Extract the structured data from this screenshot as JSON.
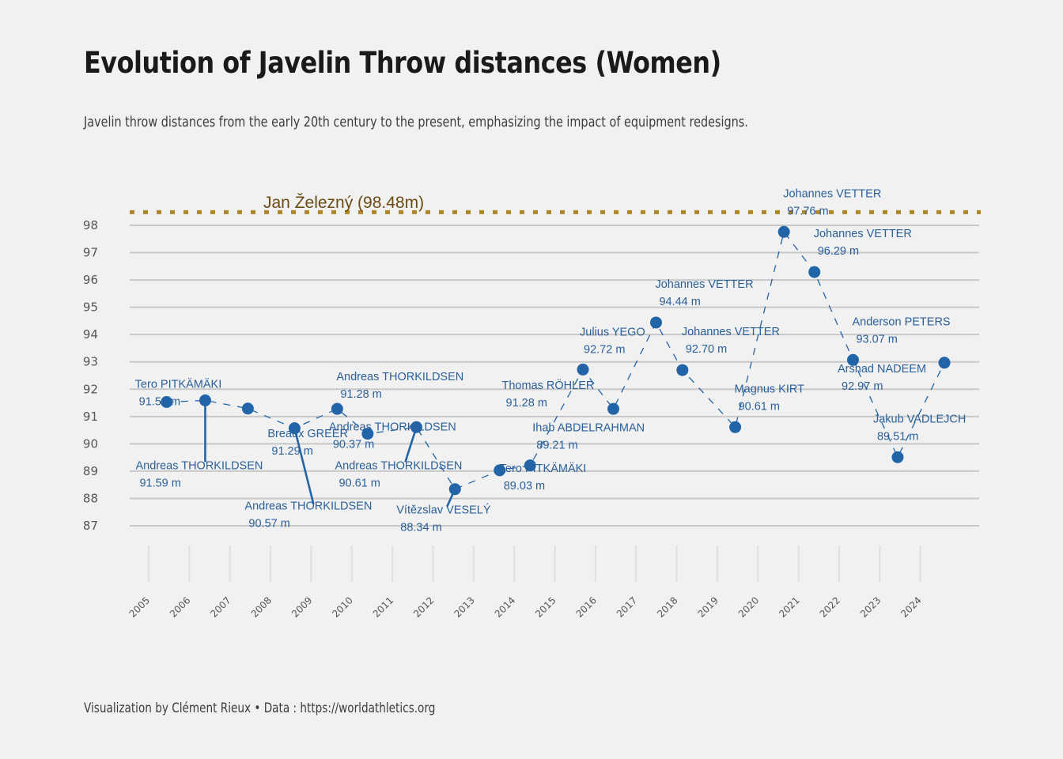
{
  "title": "Evolution of Javelin Throw distances (Women)",
  "subtitle": "Javelin throw distances from the early 20th century to the present, emphasizing the impact of equipment redesigns.",
  "caption": "Visualization by Clément Rieux • Data : https://worldathletics.org",
  "colors": {
    "series": "#2164a8",
    "reference": "#b0862b",
    "reference_text": "#6b4a12",
    "grid": "#c8c8c8"
  },
  "chart_data": {
    "type": "line",
    "title": "Evolution of Javelin Throw distances (Women)",
    "xlabel": "",
    "ylabel": "",
    "ylim": [
      87,
      98
    ],
    "xlim": [
      2004.5,
      2025.3
    ],
    "grid": true,
    "y_ticks": [
      87,
      88,
      89,
      90,
      91,
      92,
      93,
      94,
      95,
      96,
      97,
      98
    ],
    "x_ticks": [
      2005,
      2006,
      2007,
      2008,
      2009,
      2010,
      2011,
      2012,
      2013,
      2014,
      2015,
      2016,
      2017,
      2018,
      2019,
      2020,
      2021,
      2022,
      2023,
      2024
    ],
    "reference_line": {
      "label": "Jan Železný (98.48m)",
      "value": 98.48
    },
    "points": [
      {
        "x": 2005.5,
        "y": 91.53,
        "name": "Tero PITKÄMÄKI",
        "mark": "91.53 m"
      },
      {
        "x": 2006.45,
        "y": 91.59,
        "name": "Andreas THORKILDSEN",
        "mark": "91.59 m"
      },
      {
        "x": 2007.5,
        "y": 91.29,
        "name": "Breaux GREER",
        "mark": "91.29 m"
      },
      {
        "x": 2008.65,
        "y": 90.57,
        "name": "Andreas THORKILDSEN",
        "mark": "90.57 m"
      },
      {
        "x": 2009.7,
        "y": 91.28,
        "name": "Andreas THORKILDSEN",
        "mark": "91.28 m"
      },
      {
        "x": 2010.45,
        "y": 90.37,
        "name": "Andreas THORKILDSEN",
        "mark": "90.37 m"
      },
      {
        "x": 2011.65,
        "y": 90.61,
        "name": "Andreas THORKILDSEN",
        "mark": "90.61 m"
      },
      {
        "x": 2012.6,
        "y": 88.34,
        "name": "Vítězslav VESELÝ",
        "mark": "88.34 m"
      },
      {
        "x": 2013.7,
        "y": 89.03,
        "name": "Tero PITKÄMÄKI",
        "mark": "89.03 m"
      },
      {
        "x": 2014.45,
        "y": 89.21,
        "name": "Ihab ABDELRAHMAN",
        "mark": "89.21 m"
      },
      {
        "x": 2015.75,
        "y": 92.72,
        "name": "Julius YEGO",
        "mark": "92.72 m"
      },
      {
        "x": 2016.5,
        "y": 91.28,
        "name": "Thomas RÖHLER",
        "mark": "91.28 m"
      },
      {
        "x": 2017.55,
        "y": 94.44,
        "name": "Johannes VETTER",
        "mark": "94.44 m"
      },
      {
        "x": 2018.2,
        "y": 92.7,
        "name": "Johannes VETTER",
        "mark": "92.70 m"
      },
      {
        "x": 2019.5,
        "y": 90.61,
        "name": "Magnus KIRT",
        "mark": "90.61 m"
      },
      {
        "x": 2020.7,
        "y": 97.76,
        "name": "Johannes VETTER",
        "mark": "97.76 m"
      },
      {
        "x": 2021.45,
        "y": 96.29,
        "name": "Johannes VETTER",
        "mark": "96.29 m"
      },
      {
        "x": 2022.4,
        "y": 93.07,
        "name": "Anderson PETERS",
        "mark": "93.07 m"
      },
      {
        "x": 2023.5,
        "y": 89.51,
        "name": "Jakub VADLEJCH",
        "mark": "89.51 m"
      },
      {
        "x": 2024.65,
        "y": 92.97,
        "name": "Arshad NADEEM",
        "mark": "92.97 m"
      }
    ]
  }
}
